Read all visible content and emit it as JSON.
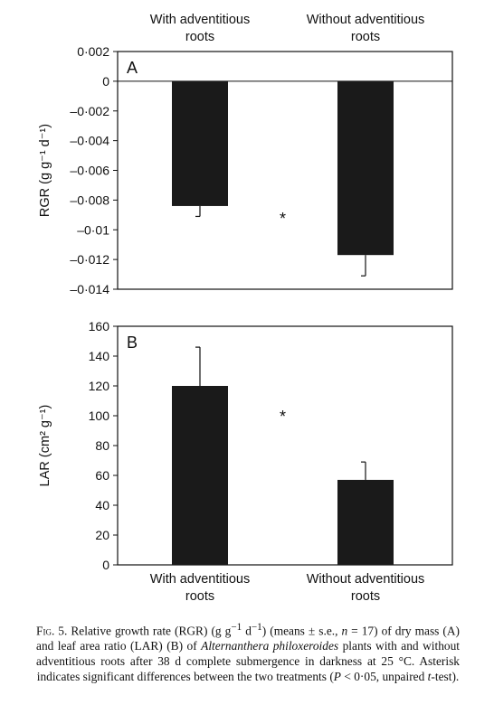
{
  "chart_data": [
    {
      "panel_label": "A",
      "type": "bar",
      "categories": [
        "With adventitious roots",
        "Without adventitious roots"
      ],
      "top_category_labels": [
        "With adventitious\nroots",
        "Without adventitious\nroots"
      ],
      "values": [
        -0.0084,
        -0.0117
      ],
      "errors": [
        0.0007,
        0.0014
      ],
      "ylabel": "RGR (g g⁻¹ d⁻¹)",
      "ylim": [
        -0.014,
        0.002
      ],
      "yticks": [
        0.002,
        0,
        -0.002,
        -0.004,
        -0.006,
        -0.008,
        -0.01,
        -0.012,
        -0.014
      ],
      "ytick_labels": [
        "0·002",
        "0",
        "–0·002",
        "–0·004",
        "–0·006",
        "–0·008",
        "–0·01",
        "–0·012",
        "–0·014"
      ],
      "annotation": "*",
      "bar_color": "#1a1a1a"
    },
    {
      "panel_label": "B",
      "type": "bar",
      "categories": [
        "With adventitious roots",
        "Without adventitious roots"
      ],
      "bottom_category_labels": [
        "With adventitious\nroots",
        "Without adventitious\nroots"
      ],
      "values": [
        120,
        57
      ],
      "errors": [
        26,
        12
      ],
      "ylabel": "LAR (cm² g⁻¹)",
      "ylim": [
        0,
        160
      ],
      "yticks": [
        0,
        20,
        40,
        60,
        80,
        100,
        120,
        140,
        160
      ],
      "ytick_labels": [
        "0",
        "20",
        "40",
        "60",
        "80",
        "100",
        "120",
        "140",
        "160"
      ],
      "annotation": "*",
      "bar_color": "#1a1a1a"
    }
  ],
  "caption": {
    "fig_label": "Fig. 5.",
    "part1": "Relative growth rate (RGR) (g g",
    "sup1": "−1",
    "part2": " d",
    "sup2": "−1",
    "part3": ") (means ± s.e., ",
    "n_var": "n",
    "part4": " = 17) of dry mass (A) and leaf area ratio (LAR) (B) of ",
    "species": "Alternanthera philoxeroides",
    "part5": " plants with and without adventitious roots after 38 d complete submergence in darkness at 25 °C. Asterisk indicates significant differences between the two treatments (",
    "p_var": "P",
    "part6": " < 0·05, unpaired ",
    "t_var": "t",
    "part7": "-test)."
  }
}
